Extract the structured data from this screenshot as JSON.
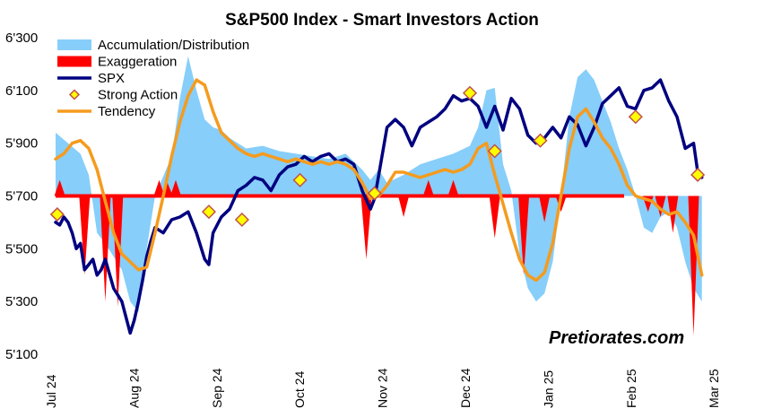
{
  "chart_data": {
    "type": "line",
    "title": "S&P500 Index - Smart Investors Action",
    "watermark": "Pretiorates.com",
    "ylim": [
      5100,
      6300
    ],
    "baseline": 5700,
    "y_ticks": [
      {
        "value": 5100,
        "label": "5'100"
      },
      {
        "value": 5300,
        "label": "5'300"
      },
      {
        "value": 5500,
        "label": "5'500"
      },
      {
        "value": 5700,
        "label": "5'700"
      },
      {
        "value": 5900,
        "label": "5'900"
      },
      {
        "value": 6100,
        "label": "6'100"
      },
      {
        "value": 6300,
        "label": "6'300"
      }
    ],
    "x_ticks": [
      {
        "value": 0,
        "label": "Jul 24"
      },
      {
        "value": 1,
        "label": "Aug 24"
      },
      {
        "value": 2,
        "label": "Sep 24"
      },
      {
        "value": 3,
        "label": "Oct 24"
      },
      {
        "value": 4,
        "label": "Nov 24"
      },
      {
        "value": 5,
        "label": "Dec 24"
      },
      {
        "value": 6,
        "label": "Jan 25"
      },
      {
        "value": 7,
        "label": "Feb 25"
      },
      {
        "value": 8,
        "label": "Mar 25"
      }
    ],
    "colors": {
      "accumulation": "#87CEFA",
      "exaggeration": "#FF0000",
      "spx": "#000080",
      "strong_action_fill": "#FFFF00",
      "strong_action_stroke": "#C0504D",
      "tendency": "#F59B1E"
    },
    "legend": {
      "placement": "top-left",
      "items": [
        {
          "key": "accumulation",
          "label": "Accumulation/Distribution",
          "symbol": "area"
        },
        {
          "key": "exaggeration",
          "label": "Exaggeration",
          "symbol": "area"
        },
        {
          "key": "spx",
          "label": "SPX",
          "symbol": "line"
        },
        {
          "key": "strong_action",
          "label": "Strong Action",
          "symbol": "diamond"
        },
        {
          "key": "tendency",
          "label": "Tendency",
          "symbol": "line"
        }
      ]
    },
    "series": [
      {
        "name": "SPX",
        "x": [
          0,
          0.05,
          0.1,
          0.15,
          0.2,
          0.25,
          0.3,
          0.35,
          0.4,
          0.45,
          0.5,
          0.55,
          0.6,
          0.7,
          0.8,
          0.9,
          0.95,
          1.0,
          1.05,
          1.1,
          1.15,
          1.2,
          1.3,
          1.4,
          1.5,
          1.6,
          1.7,
          1.8,
          1.85,
          1.9,
          2.0,
          2.1,
          2.2,
          2.3,
          2.4,
          2.5,
          2.6,
          2.7,
          2.8,
          2.9,
          3.0,
          3.1,
          3.2,
          3.3,
          3.4,
          3.5,
          3.6,
          3.7,
          3.8,
          3.85,
          3.9,
          4.0,
          4.1,
          4.2,
          4.3,
          4.4,
          4.5,
          4.6,
          4.7,
          4.8,
          4.9,
          5.0,
          5.1,
          5.2,
          5.3,
          5.4,
          5.5,
          5.6,
          5.7,
          5.8,
          5.9,
          6.0,
          6.1,
          6.2,
          6.3,
          6.4,
          6.5,
          6.6,
          6.7,
          6.8,
          6.9,
          7.0,
          7.1,
          7.2,
          7.3,
          7.4,
          7.5,
          7.6,
          7.7,
          7.75,
          7.8
        ],
        "values": [
          5600,
          5590,
          5620,
          5600,
          5560,
          5500,
          5520,
          5420,
          5440,
          5460,
          5400,
          5420,
          5460,
          5350,
          5300,
          5180,
          5230,
          5300,
          5380,
          5470,
          5530,
          5580,
          5560,
          5610,
          5620,
          5640,
          5560,
          5460,
          5440,
          5560,
          5620,
          5650,
          5720,
          5740,
          5770,
          5760,
          5720,
          5780,
          5810,
          5820,
          5850,
          5830,
          5850,
          5860,
          5830,
          5840,
          5820,
          5720,
          5650,
          5690,
          5780,
          5960,
          5990,
          5960,
          5890,
          5960,
          5980,
          6000,
          6030,
          6080,
          6060,
          6070,
          6040,
          5960,
          6040,
          5950,
          6070,
          6030,
          5930,
          5900,
          5920,
          5960,
          5920,
          6000,
          5970,
          5890,
          5960,
          6050,
          6080,
          6110,
          6040,
          6030,
          6100,
          6110,
          6140,
          6060,
          6000,
          5880,
          5900,
          5790,
          5770
        ]
      },
      {
        "name": "Tendency",
        "x": [
          0,
          0.1,
          0.2,
          0.3,
          0.4,
          0.5,
          0.6,
          0.7,
          0.8,
          0.9,
          1.0,
          1.1,
          1.2,
          1.3,
          1.4,
          1.5,
          1.6,
          1.7,
          1.8,
          1.9,
          2.0,
          2.1,
          2.2,
          2.3,
          2.4,
          2.5,
          2.6,
          2.7,
          2.8,
          2.9,
          3.0,
          3.1,
          3.2,
          3.3,
          3.4,
          3.5,
          3.6,
          3.7,
          3.8,
          3.9,
          4.0,
          4.1,
          4.2,
          4.3,
          4.4,
          4.5,
          4.6,
          4.7,
          4.8,
          4.9,
          5.0,
          5.1,
          5.2,
          5.3,
          5.4,
          5.5,
          5.6,
          5.7,
          5.8,
          5.9,
          6.0,
          6.1,
          6.2,
          6.3,
          6.4,
          6.5,
          6.6,
          6.7,
          6.8,
          6.9,
          7.0,
          7.1,
          7.2,
          7.3,
          7.4,
          7.5,
          7.6,
          7.7,
          7.8
        ],
        "values": [
          5840,
          5860,
          5900,
          5910,
          5880,
          5800,
          5680,
          5560,
          5480,
          5450,
          5420,
          5430,
          5560,
          5700,
          5850,
          5980,
          6080,
          6140,
          6120,
          6020,
          5940,
          5910,
          5880,
          5860,
          5850,
          5860,
          5850,
          5840,
          5830,
          5840,
          5830,
          5820,
          5830,
          5820,
          5830,
          5820,
          5800,
          5750,
          5690,
          5700,
          5740,
          5790,
          5790,
          5780,
          5770,
          5780,
          5790,
          5800,
          5790,
          5800,
          5820,
          5880,
          5900,
          5780,
          5670,
          5560,
          5460,
          5400,
          5380,
          5410,
          5520,
          5700,
          5880,
          6000,
          6030,
          5980,
          5920,
          5880,
          5820,
          5740,
          5700,
          5690,
          5680,
          5650,
          5630,
          5640,
          5600,
          5550,
          5400
        ]
      },
      {
        "name": "Accumulation/Distribution",
        "x": [
          0,
          0.15,
          0.3,
          0.4,
          0.5,
          0.6,
          0.8,
          0.9,
          1.0,
          1.1,
          1.2,
          1.4,
          1.5,
          1.6,
          1.7,
          1.8,
          1.9,
          2.0,
          2.1,
          2.2,
          2.3,
          2.5,
          2.7,
          2.9,
          3.1,
          3.3,
          3.5,
          3.7,
          3.8,
          3.9,
          4.0,
          4.2,
          4.4,
          4.6,
          4.8,
          5.0,
          5.1,
          5.2,
          5.3,
          5.4,
          5.5,
          5.6,
          5.7,
          5.8,
          5.9,
          6.0,
          6.1,
          6.2,
          6.3,
          6.4,
          6.5,
          6.6,
          6.7,
          6.8,
          6.9,
          7.0,
          7.1,
          7.2,
          7.3,
          7.4,
          7.5,
          7.6,
          7.7,
          7.8
        ],
        "values": [
          5940,
          5900,
          5860,
          5780,
          5560,
          5520,
          5420,
          5300,
          5260,
          5500,
          5700,
          5850,
          6070,
          6230,
          6100,
          5990,
          5960,
          5950,
          5920,
          5900,
          5880,
          5890,
          5870,
          5860,
          5850,
          5840,
          5860,
          5800,
          5760,
          5800,
          5750,
          5780,
          5820,
          5840,
          5860,
          5890,
          5960,
          6100,
          6110,
          5820,
          5720,
          5480,
          5350,
          5300,
          5330,
          5450,
          5700,
          6000,
          6150,
          6180,
          6140,
          6060,
          5980,
          5880,
          5800,
          5700,
          5580,
          5560,
          5620,
          5640,
          5580,
          5450,
          5350,
          5300
        ]
      }
    ],
    "exaggeration_spikes": [
      {
        "x": 0.05,
        "value": 5760
      },
      {
        "x": 0.35,
        "value": 5400
      },
      {
        "x": 0.6,
        "value": 5300
      },
      {
        "x": 0.75,
        "value": 5280
      },
      {
        "x": 1.25,
        "value": 5760
      },
      {
        "x": 1.35,
        "value": 5750
      },
      {
        "x": 1.45,
        "value": 5760
      },
      {
        "x": 3.75,
        "value": 5460
      },
      {
        "x": 4.2,
        "value": 5620
      },
      {
        "x": 4.5,
        "value": 5760
      },
      {
        "x": 4.8,
        "value": 5760
      },
      {
        "x": 5.3,
        "value": 5540
      },
      {
        "x": 5.65,
        "value": 5400
      },
      {
        "x": 5.9,
        "value": 5600
      },
      {
        "x": 6.1,
        "value": 5640
      },
      {
        "x": 7.15,
        "value": 5640
      },
      {
        "x": 7.3,
        "value": 5620
      },
      {
        "x": 7.45,
        "value": 5560
      },
      {
        "x": 7.7,
        "value": 5170
      }
    ],
    "strong_action": [
      {
        "x": 0.02,
        "value": 5630
      },
      {
        "x": 1.85,
        "value": 5640
      },
      {
        "x": 2.25,
        "value": 5610
      },
      {
        "x": 2.95,
        "value": 5760
      },
      {
        "x": 3.85,
        "value": 5710
      },
      {
        "x": 5.0,
        "value": 6090
      },
      {
        "x": 5.3,
        "value": 5870
      },
      {
        "x": 5.85,
        "value": 5910
      },
      {
        "x": 7.0,
        "value": 6000
      },
      {
        "x": 7.75,
        "value": 5780
      }
    ]
  }
}
